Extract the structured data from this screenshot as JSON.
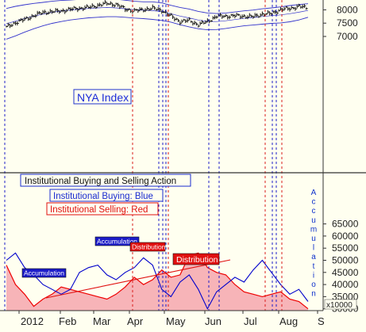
{
  "chart_data": [
    {
      "type": "ohlc",
      "label": "NYA Index",
      "y_ticks": [
        7000,
        7500,
        8000
      ],
      "ylim": [
        6700,
        8480
      ],
      "x_tick_labels": [
        "2012",
        "Feb",
        "Mar",
        "Apr",
        "May",
        "Jun",
        "Jul",
        "Aug",
        "S"
      ],
      "weeks": [
        "2012-01-06",
        "2012-01-13",
        "2012-01-20",
        "2012-01-27",
        "2012-02-03",
        "2012-02-10",
        "2012-02-17",
        "2012-02-24",
        "2012-03-02",
        "2012-03-09",
        "2012-03-16",
        "2012-03-23",
        "2012-03-30",
        "2012-04-06",
        "2012-04-13",
        "2012-04-20",
        "2012-04-27",
        "2012-05-04",
        "2012-05-11",
        "2012-05-18",
        "2012-05-25",
        "2012-06-01",
        "2012-06-08",
        "2012-06-15",
        "2012-06-22",
        "2012-06-29",
        "2012-07-06",
        "2012-07-13",
        "2012-07-20",
        "2012-07-27",
        "2012-08-03",
        "2012-08-10",
        "2012-08-17",
        "2012-08-24"
      ],
      "close": [
        7350,
        7520,
        7640,
        7780,
        7900,
        7930,
        7960,
        8020,
        8060,
        8090,
        8170,
        8240,
        8200,
        8030,
        7960,
        8010,
        8060,
        7980,
        7760,
        7560,
        7600,
        7440,
        7560,
        7760,
        7760,
        7780,
        7760,
        7740,
        7840,
        7860,
        8010,
        8050,
        8130,
        8060
      ],
      "upper_band": [
        8050,
        8130,
        8190,
        8240,
        8280,
        8320,
        8350,
        8370,
        8390,
        8400,
        8420,
        8440,
        8400,
        8360,
        8320,
        8300,
        8300,
        8260,
        8170,
        8090,
        8030,
        7940,
        7880,
        7860,
        7880,
        7920,
        7960,
        7990,
        8040,
        8070,
        8110,
        8160,
        8200,
        8230
      ],
      "lower_band": [
        6900,
        7020,
        7160,
        7290,
        7400,
        7490,
        7560,
        7620,
        7660,
        7700,
        7720,
        7740,
        7740,
        7720,
        7690,
        7670,
        7640,
        7600,
        7540,
        7440,
        7360,
        7290,
        7250,
        7260,
        7300,
        7350,
        7400,
        7430,
        7460,
        7490,
        7510,
        7550,
        7620,
        7720
      ]
    },
    {
      "type": "area",
      "y_ticks": [
        30000,
        35000,
        40000,
        45000,
        50000,
        55000,
        60000,
        65000
      ],
      "ylim": [
        27000,
        67500
      ],
      "scale_label": "x10000",
      "axis_title": "Accumulation",
      "series": [
        {
          "name": "Institutional Buying: Blue",
          "color": "#0000cc",
          "values": [
            50000,
            53000,
            47000,
            44000,
            40000,
            38000,
            36000,
            38000,
            45000,
            47000,
            48000,
            44000,
            42000,
            45000,
            47000,
            51000,
            48000,
            38000,
            35000,
            41000,
            44000,
            38000,
            30000,
            37000,
            40000,
            43000,
            41000,
            46000,
            50000,
            45000,
            40000,
            36000,
            38000,
            33000
          ]
        },
        {
          "name": "Institutional Selling: Red",
          "color": "#ee0000",
          "values": [
            48000,
            40000,
            36000,
            31000,
            34000,
            36000,
            39000,
            38000,
            37000,
            36000,
            35000,
            34000,
            36000,
            39000,
            43000,
            40000,
            42000,
            46000,
            43000,
            44000,
            52000,
            53000,
            47000,
            45000,
            44000,
            40000,
            37000,
            36000,
            35000,
            36000,
            37000,
            34000,
            33000,
            30000
          ]
        }
      ]
    }
  ],
  "labels": {
    "nya": "NYA Index",
    "title": "Institutional Buying and Selling Action",
    "buying": "Institutional Buying: Blue",
    "selling": "Institutional Selling: Red",
    "tag_accum_1": "Accumulation",
    "tag_accum_2": "Accumulation",
    "tag_dist_1": "Distribution",
    "tag_dist_2": "Distribution"
  }
}
